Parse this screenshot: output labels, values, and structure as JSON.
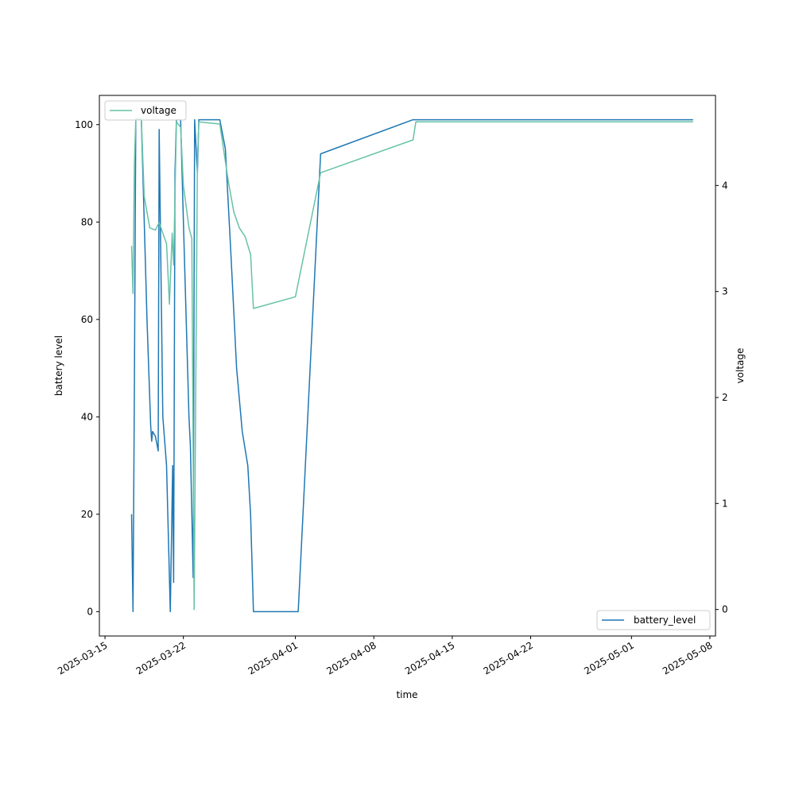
{
  "chart_data": {
    "type": "line",
    "xlabel": "time",
    "ylabel_left": "battery level",
    "ylabel_right": "voltage",
    "x_ticks": [
      "2025-03-15",
      "2025-03-22",
      "2025-04-01",
      "2025-04-08",
      "2025-04-15",
      "2025-04-22",
      "2025-05-01",
      "2025-05-08"
    ],
    "y_left_ticks": [
      0,
      20,
      40,
      60,
      80,
      100
    ],
    "y_right_ticks": [
      0,
      1,
      2,
      3,
      4
    ],
    "xlim": [
      "2025-03-14 12:00",
      "2025-05-08 12:00"
    ],
    "ylim_left": [
      -5,
      106
    ],
    "ylim_right": [
      -0.25,
      4.85
    ],
    "grid": false,
    "legends": {
      "left_series": {
        "placement": "upper left"
      },
      "right_series": {
        "placement": "lower right"
      }
    },
    "series": [
      {
        "name": "battery_level",
        "axis": "left",
        "color": "#1f77b4",
        "points": [
          [
            "2025-03-17 09:00",
            20
          ],
          [
            "2025-03-17 12:00",
            0
          ],
          [
            "2025-03-17 15:00",
            45
          ],
          [
            "2025-03-17 18:00",
            101
          ],
          [
            "2025-03-18 06:00",
            101
          ],
          [
            "2025-03-18 18:00",
            60
          ],
          [
            "2025-03-19 02:00",
            38
          ],
          [
            "2025-03-19 04:00",
            35
          ],
          [
            "2025-03-19 06:00",
            37
          ],
          [
            "2025-03-19 12:00",
            36
          ],
          [
            "2025-03-19 18:00",
            33
          ],
          [
            "2025-03-19 20:00",
            99
          ],
          [
            "2025-03-20 04:00",
            40
          ],
          [
            "2025-03-20 12:00",
            30
          ],
          [
            "2025-03-20 20:00",
            0
          ],
          [
            "2025-03-21 01:00",
            30
          ],
          [
            "2025-03-21 03:00",
            6
          ],
          [
            "2025-03-21 06:00",
            90
          ],
          [
            "2025-03-21 09:00",
            101
          ],
          [
            "2025-03-21 18:00",
            101
          ],
          [
            "2025-03-22 00:00",
            80
          ],
          [
            "2025-03-22 06:00",
            60
          ],
          [
            "2025-03-22 12:00",
            40
          ],
          [
            "2025-03-22 15:00",
            34
          ],
          [
            "2025-03-22 21:00",
            7
          ],
          [
            "2025-03-23 00:00",
            101
          ],
          [
            "2025-03-23 06:00",
            90
          ],
          [
            "2025-03-23 09:00",
            101
          ],
          [
            "2025-03-25 06:00",
            101
          ],
          [
            "2025-03-25 18:00",
            95
          ],
          [
            "2025-03-26 06:00",
            73
          ],
          [
            "2025-03-26 18:00",
            50
          ],
          [
            "2025-03-27 06:00",
            37
          ],
          [
            "2025-03-27 18:00",
            30
          ],
          [
            "2025-03-28 00:00",
            20
          ],
          [
            "2025-03-28 06:00",
            0
          ],
          [
            "2025-04-01 06:00",
            0
          ],
          [
            "2025-04-03 06:00",
            94
          ],
          [
            "2025-04-11 12:00",
            101
          ],
          [
            "2025-05-06 12:00",
            101
          ]
        ]
      },
      {
        "name": "voltage",
        "axis": "right",
        "color": "#66c2a5",
        "points": [
          [
            "2025-03-17 09:00",
            3.43
          ],
          [
            "2025-03-17 12:00",
            2.98
          ],
          [
            "2025-03-17 15:00",
            4.2
          ],
          [
            "2025-03-17 18:00",
            4.63
          ],
          [
            "2025-03-18 06:00",
            4.63
          ],
          [
            "2025-03-18 12:00",
            3.9
          ],
          [
            "2025-03-19 00:00",
            3.6
          ],
          [
            "2025-03-19 12:00",
            3.58
          ],
          [
            "2025-03-19 20:00",
            3.65
          ],
          [
            "2025-03-20 12:00",
            3.45
          ],
          [
            "2025-03-20 18:00",
            2.88
          ],
          [
            "2025-03-21 00:00",
            3.55
          ],
          [
            "2025-03-21 03:00",
            3.25
          ],
          [
            "2025-03-21 09:00",
            4.6
          ],
          [
            "2025-03-21 18:00",
            4.55
          ],
          [
            "2025-03-22 00:00",
            4.0
          ],
          [
            "2025-03-22 12:00",
            3.6
          ],
          [
            "2025-03-22 18:00",
            3.5
          ],
          [
            "2025-03-22 23:00",
            0
          ],
          [
            "2025-03-23 06:00",
            4.2
          ],
          [
            "2025-03-23 09:00",
            4.6
          ],
          [
            "2025-03-25 06:00",
            4.58
          ],
          [
            "2025-03-26 00:00",
            4.05
          ],
          [
            "2025-03-26 12:00",
            3.75
          ],
          [
            "2025-03-27 00:00",
            3.6
          ],
          [
            "2025-03-27 12:00",
            3.52
          ],
          [
            "2025-03-28 00:00",
            3.35
          ],
          [
            "2025-03-28 06:00",
            2.84
          ],
          [
            "2025-04-01 00:00",
            2.95
          ],
          [
            "2025-04-03 06:00",
            4.12
          ],
          [
            "2025-04-11 12:00",
            4.43
          ],
          [
            "2025-04-11 18:00",
            4.6
          ],
          [
            "2025-05-06 12:00",
            4.6
          ]
        ]
      }
    ]
  }
}
